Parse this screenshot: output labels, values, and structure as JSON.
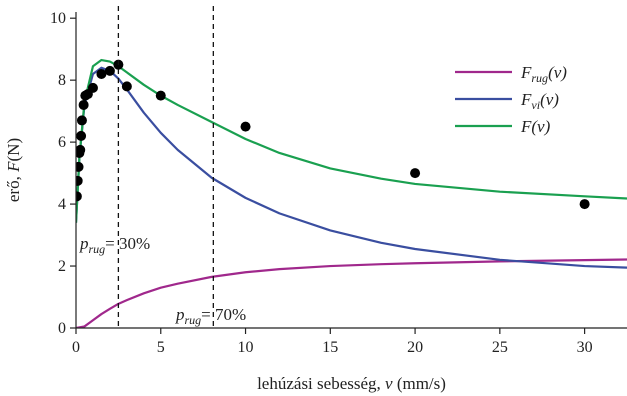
{
  "chart_data": {
    "type": "line",
    "xlabel": "lehúzási sebesség, v (mm/s)",
    "ylabel": "erő, F(N)",
    "xlim": [
      0,
      32.5
    ],
    "ylim": [
      0,
      10.2
    ],
    "x_ticks": [
      0,
      5,
      10,
      15,
      20,
      25,
      30
    ],
    "y_ticks": [
      0,
      2,
      4,
      6,
      8,
      10
    ],
    "legend_position": "top-right",
    "series": [
      {
        "name": "F_rug(v)",
        "label_main": "F",
        "label_sub": "rug",
        "label_arg": "(v)",
        "color": "#a0288c",
        "x": [
          0,
          0.5,
          1,
          1.5,
          2,
          2.5,
          3,
          4,
          5,
          6,
          8,
          10,
          12,
          15,
          18,
          20,
          25,
          30,
          32.5
        ],
        "y": [
          0,
          0.05,
          0.25,
          0.45,
          0.62,
          0.78,
          0.9,
          1.12,
          1.3,
          1.43,
          1.65,
          1.8,
          1.9,
          2.0,
          2.06,
          2.09,
          2.15,
          2.19,
          2.21
        ]
      },
      {
        "name": "F_vi(v)",
        "label_main": "F",
        "label_sub": "vi",
        "label_arg": "(v)",
        "color": "#3a4ea0",
        "x": [
          0,
          0.2,
          0.5,
          1,
          1.5,
          2,
          2.5,
          3,
          4,
          5,
          6,
          8,
          10,
          12,
          15,
          18,
          20,
          25,
          30,
          32.5
        ],
        "y": [
          3.4,
          5.5,
          7.2,
          8.2,
          8.4,
          8.3,
          8.05,
          7.7,
          6.95,
          6.3,
          5.75,
          4.85,
          4.2,
          3.7,
          3.15,
          2.75,
          2.55,
          2.2,
          2.0,
          1.95
        ]
      },
      {
        "name": "F(v)",
        "label_main": "F",
        "label_sub": "",
        "label_arg": "(v)",
        "color": "#1aa050",
        "x": [
          0,
          0.2,
          0.5,
          1,
          1.5,
          2,
          2.5,
          3,
          4,
          5,
          6,
          8,
          10,
          12,
          15,
          18,
          20,
          25,
          30,
          32.5
        ],
        "y": [
          3.4,
          5.5,
          7.3,
          8.45,
          8.65,
          8.6,
          8.45,
          8.25,
          7.85,
          7.5,
          7.2,
          6.65,
          6.1,
          5.65,
          5.15,
          4.82,
          4.65,
          4.4,
          4.25,
          4.18
        ]
      }
    ],
    "measured_points": {
      "color": "#000000",
      "x": [
        0.05,
        0.1,
        0.15,
        0.2,
        0.25,
        0.3,
        0.35,
        0.45,
        0.55,
        0.7,
        1.0,
        1.5,
        2.0,
        2.5,
        3.0,
        5.0,
        10.0,
        20.0,
        30.0
      ],
      "y": [
        4.25,
        4.75,
        5.2,
        5.65,
        5.75,
        6.2,
        6.7,
        7.2,
        7.5,
        7.55,
        7.75,
        8.2,
        8.3,
        8.5,
        7.8,
        7.5,
        6.5,
        5.0,
        4.0
      ]
    },
    "vertical_lines": [
      {
        "x": 2.5,
        "label_main": "p",
        "label_sub": "rug",
        "label_rest": "= 30%",
        "label_y": 2.75
      },
      {
        "x": 8.1,
        "label_main": "p",
        "label_sub": "rug",
        "label_rest": "= 70%",
        "label_y": 0.45
      }
    ]
  }
}
